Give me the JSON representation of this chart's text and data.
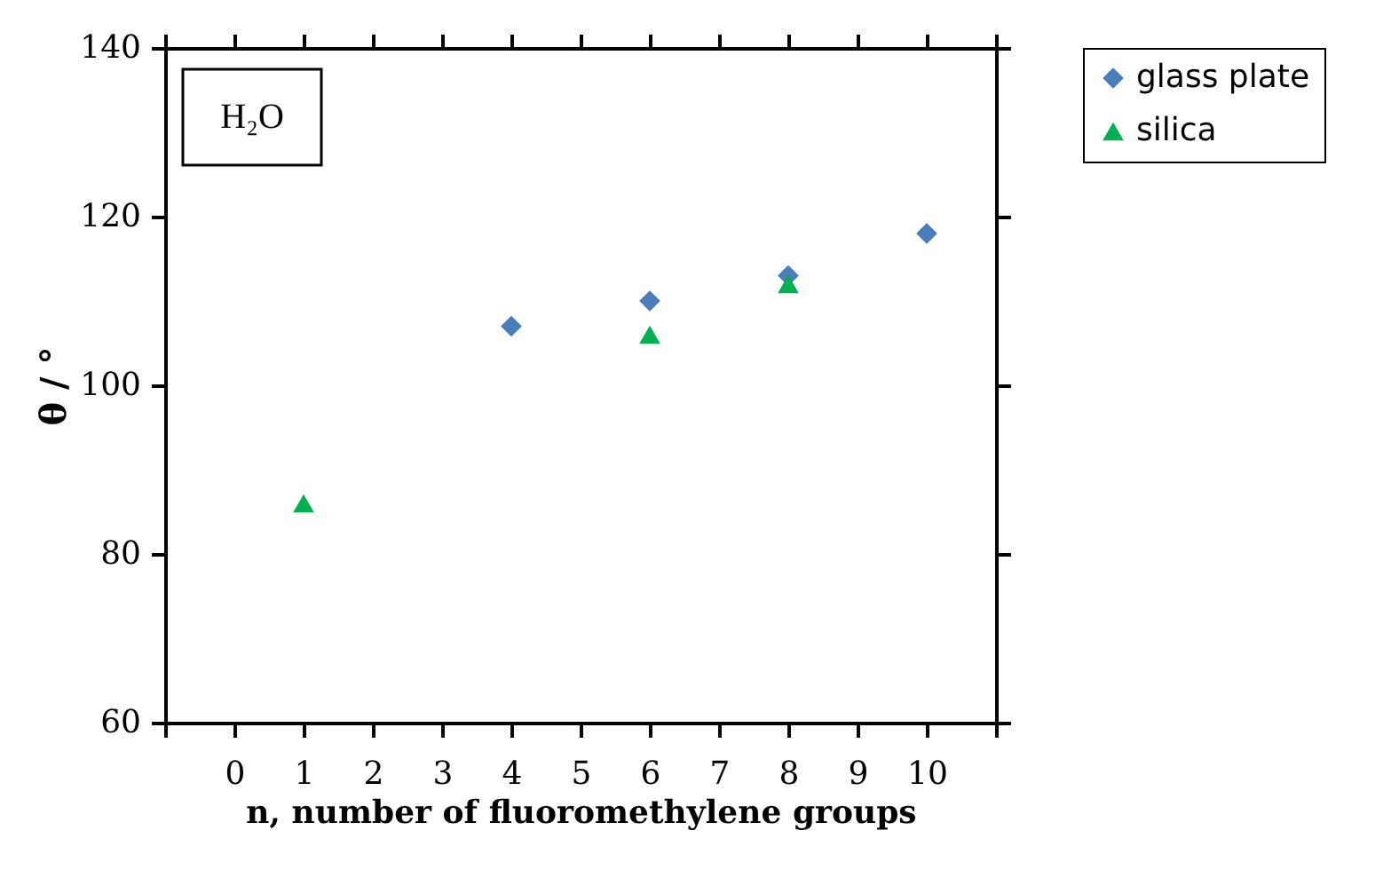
{
  "chart_data": {
    "type": "scatter",
    "xlabel": "n, number of fluoromethylene groups",
    "ylabel": "θ / °",
    "annotations": [
      "H₂O"
    ],
    "xlim": [
      -1,
      11
    ],
    "xticks": [
      {
        "value": -1,
        "label": null
      },
      0,
      1,
      2,
      3,
      4,
      5,
      6,
      7,
      8,
      9,
      10,
      {
        "value": 11,
        "label": null
      }
    ],
    "ylim": [
      60,
      140
    ],
    "yticks": [
      60,
      80,
      100,
      120,
      140
    ],
    "legend": "right",
    "grid": false,
    "series": [
      {
        "name": "glass plate",
        "color": "#4a7ebb",
        "marker": "diamond",
        "x": [
          4,
          6,
          8,
          10
        ],
        "values": [
          107,
          110,
          113,
          118
        ]
      },
      {
        "name": "silica",
        "color": "#00b050",
        "marker": "triangle",
        "x": [
          1,
          6,
          8
        ],
        "values": [
          86,
          106,
          112
        ]
      }
    ]
  }
}
